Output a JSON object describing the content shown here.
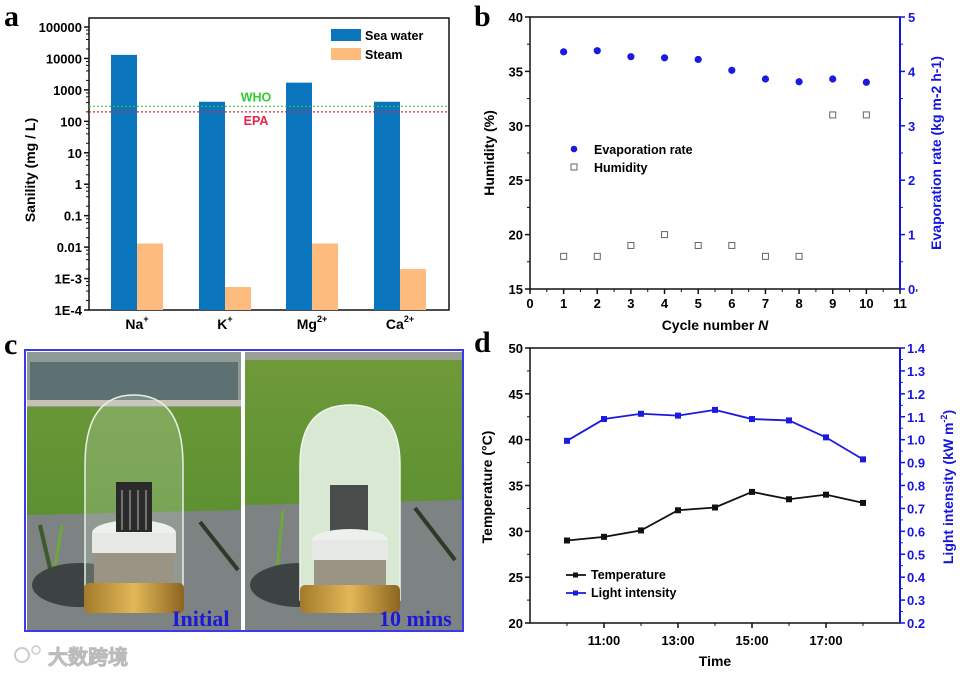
{
  "panel_labels": {
    "a": "a",
    "b": "b",
    "c": "c",
    "d": "d"
  },
  "watermark": "大数跨境",
  "photo": {
    "left_caption": "Initial",
    "right_caption": "10 mins"
  },
  "colors": {
    "sea_water": "#0a74bd",
    "steam": "#fdbb7e",
    "who": "#33cc33",
    "epa": "#e8204a",
    "blue_axis": "#1515e0",
    "black": "#111111"
  },
  "chart_data": [
    {
      "id": "a",
      "type": "bar",
      "title": "",
      "xlabel": "",
      "ylabel": "Sanility (mg / L)",
      "yscale": "log",
      "ylim": [
        0.0001,
        100000
      ],
      "yticks": [
        "100000",
        "10000",
        "1000",
        "100",
        "10",
        "1",
        "0.1",
        "0.01",
        "1E-3",
        "1E-4"
      ],
      "categories": [
        {
          "base": "Na",
          "sup": "+"
        },
        {
          "base": "K",
          "sup": "+"
        },
        {
          "base": "Mg",
          "sup": "2+"
        },
        {
          "base": "Ca",
          "sup": "2+"
        }
      ],
      "series": [
        {
          "name": "Sea water",
          "values": [
            13000,
            420,
            1700,
            420
          ]
        },
        {
          "name": "Steam",
          "values": [
            0.013,
            0.00054,
            0.013,
            0.002
          ]
        }
      ],
      "reference_lines": [
        {
          "name": "WHO",
          "value": 300
        },
        {
          "name": "EPA",
          "value": 200
        }
      ],
      "legend": "top-right"
    },
    {
      "id": "b",
      "type": "scatter",
      "xlabel": "Cycle number ",
      "xlabel_italic": "N",
      "ylabel": "Humidity (%)",
      "y2label": "Evaporation rate (kg m-2 h-1)",
      "y2label_parts": [
        "Evaporation rate (kg m",
        "-2",
        " h",
        "-1",
        ")"
      ],
      "xlim": [
        0,
        11
      ],
      "ylim": [
        15,
        40
      ],
      "y2lim": [
        0,
        5
      ],
      "xticks": [
        "0",
        "1",
        "2",
        "3",
        "4",
        "5",
        "6",
        "7",
        "8",
        "9",
        "10",
        "11"
      ],
      "yticks": [
        "15",
        "20",
        "25",
        "30",
        "35",
        "40"
      ],
      "y2ticks": [
        "0",
        "1",
        "2",
        "3",
        "4",
        "5"
      ],
      "x": [
        1,
        2,
        3,
        4,
        5,
        6,
        7,
        8,
        9,
        10
      ],
      "series": [
        {
          "name": "Evaporation rate",
          "axis": "right",
          "values": [
            4.36,
            4.38,
            4.27,
            4.25,
            4.22,
            4.02,
            3.86,
            3.81,
            3.86,
            3.8
          ]
        },
        {
          "name": "Humidity",
          "axis": "left",
          "values": [
            18,
            18,
            19,
            20,
            19,
            19,
            18,
            18,
            31,
            31
          ]
        }
      ],
      "legend": "middle-left"
    },
    {
      "id": "d",
      "type": "line",
      "xlabel": "Time",
      "ylabel": "Temperature (°C)",
      "y2label_parts": [
        "Light intensity (kW m",
        "-2",
        ")"
      ],
      "xlim": [
        9,
        19
      ],
      "ylim": [
        20,
        50
      ],
      "y2lim": [
        0.2,
        1.4
      ],
      "xticks": [
        {
          "v": 11,
          "label": "11:00"
        },
        {
          "v": 13,
          "label": "13:00"
        },
        {
          "v": 15,
          "label": "15:00"
        },
        {
          "v": 17,
          "label": "17:00"
        }
      ],
      "yticks": [
        "20",
        "25",
        "30",
        "35",
        "40",
        "45",
        "50"
      ],
      "y2ticks": [
        "0.2",
        "0.3",
        "0.4",
        "0.5",
        "0.6",
        "0.7",
        "0.8",
        "0.9",
        "1.0",
        "1.1",
        "1.2",
        "1.3",
        "1.4"
      ],
      "x": [
        10,
        11,
        12,
        13,
        14,
        15,
        16,
        17,
        18
      ],
      "series": [
        {
          "name": "Temperature",
          "axis": "left",
          "values": [
            29.0,
            29.4,
            30.1,
            32.3,
            32.6,
            34.3,
            33.5,
            34.0,
            33.1
          ]
        },
        {
          "name": "Light intensity",
          "axis": "right",
          "values": [
            0.995,
            1.09,
            1.113,
            1.105,
            1.13,
            1.09,
            1.084,
            1.01,
            0.914
          ]
        }
      ],
      "legend": "bottom-left"
    }
  ]
}
